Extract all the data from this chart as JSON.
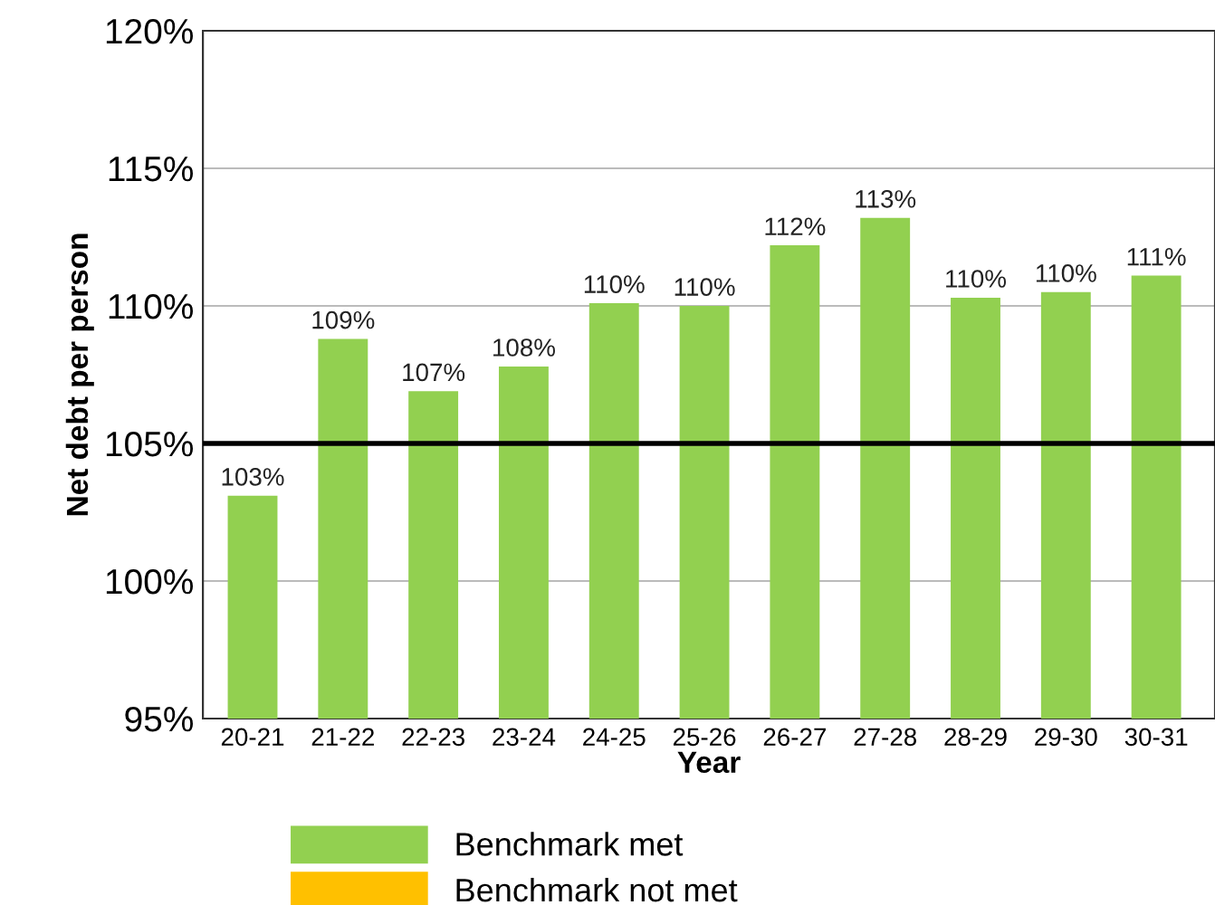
{
  "chart_data": {
    "type": "bar",
    "xlabel": "Year",
    "ylabel": "Net debt per person",
    "categories": [
      "20-21",
      "21-22",
      "22-23",
      "23-24",
      "24-25",
      "25-26",
      "26-27",
      "27-28",
      "28-29",
      "29-30",
      "30-31"
    ],
    "series": [
      {
        "name": "Benchmark met",
        "color": "#92d050",
        "values": [
          103.1,
          108.8,
          106.9,
          107.8,
          110.1,
          110.0,
          112.2,
          113.2,
          110.3,
          110.5,
          111.1
        ],
        "value_labels": [
          "103%",
          "109%",
          "107%",
          "108%",
          "110%",
          "110%",
          "112%",
          "113%",
          "110%",
          "110%",
          "111%"
        ]
      },
      {
        "name": "Benchmark not met",
        "color": "#ffc000",
        "values": [
          null,
          null,
          null,
          null,
          null,
          null,
          null,
          null,
          null,
          null,
          null
        ]
      }
    ],
    "ylim": [
      95,
      120
    ],
    "yticks": [
      {
        "value": 95,
        "label": "95%"
      },
      {
        "value": 100,
        "label": "100%"
      },
      {
        "value": 105,
        "label": "105%"
      },
      {
        "value": 110,
        "label": "110%"
      },
      {
        "value": 115,
        "label": "115%"
      },
      {
        "value": 120,
        "label": "120%"
      }
    ],
    "ref_lines": [
      {
        "axis": "y",
        "value": 105,
        "color": "#000000"
      }
    ],
    "grid": "y",
    "legend": "bottom"
  }
}
